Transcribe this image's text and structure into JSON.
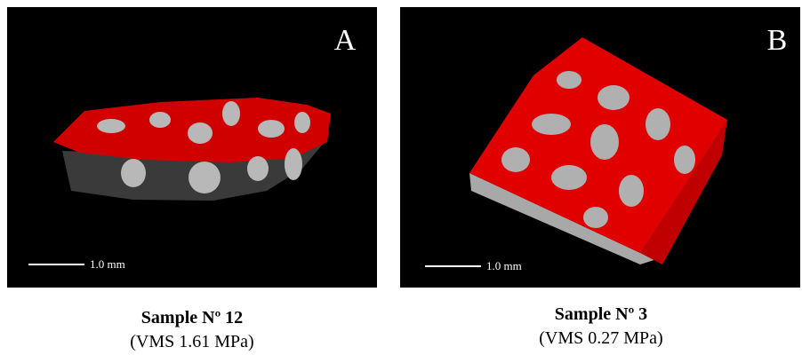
{
  "panels": [
    {
      "label": "A",
      "scale": "1.0 mm",
      "title": "Sample Nº 12",
      "subtitle": "(VMS 1.61 MPa)"
    },
    {
      "label": "B",
      "scale": "1.0 mm",
      "title": "Sample Nº 3",
      "subtitle": "(VMS 0.27 MPa)"
    }
  ]
}
